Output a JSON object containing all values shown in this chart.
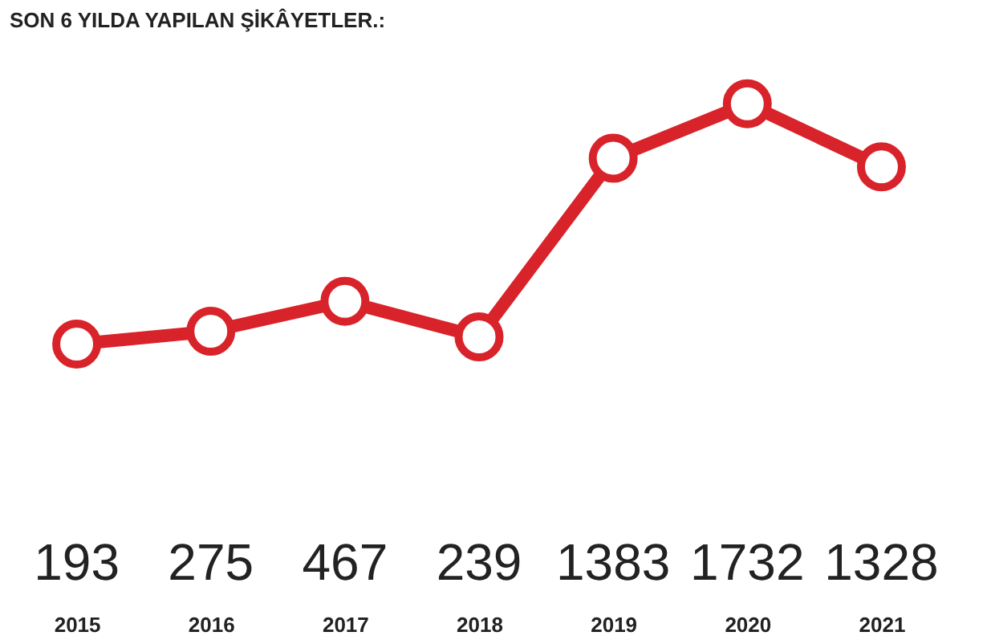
{
  "chart_data": {
    "type": "line",
    "title": "SON 6 YILDA YAPILAN ŞİKÂYETLER.:",
    "categories": [
      "2015",
      "2016",
      "2017",
      "2018",
      "2019",
      "2020",
      "2021"
    ],
    "series": [
      {
        "color": "#d9232a",
        "values": [
          193,
          275,
          467,
          239,
          1383,
          1732,
          1328
        ]
      }
    ],
    "marker": "circle",
    "data_labels": true,
    "tick_labels": "x"
  }
}
